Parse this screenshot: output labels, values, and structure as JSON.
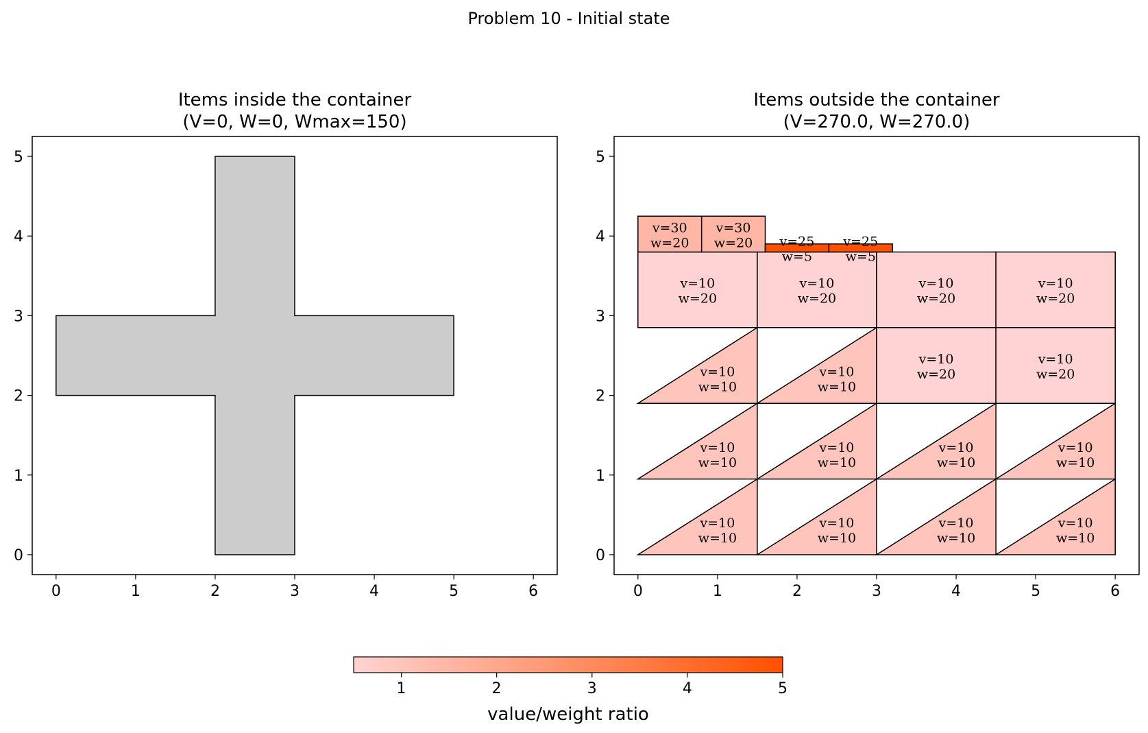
{
  "suptitle": "Problem 10 - Initial state",
  "chart_data": [
    {
      "type": "polygon",
      "title_line1": "Items inside the container",
      "title_line2": "(V=0, W=0, Wmax=150)",
      "xlim": [
        -0.3,
        6.3
      ],
      "ylim": [
        -0.25,
        5.25
      ],
      "xticks": [
        0,
        1,
        2,
        3,
        4,
        5,
        6
      ],
      "yticks": [
        0,
        1,
        2,
        3,
        4,
        5
      ],
      "container": {
        "color": "#cccccc",
        "points": [
          [
            2,
            0
          ],
          [
            3,
            0
          ],
          [
            3,
            2
          ],
          [
            5,
            2
          ],
          [
            5,
            3
          ],
          [
            3,
            3
          ],
          [
            3,
            5
          ],
          [
            2,
            5
          ],
          [
            2,
            3
          ],
          [
            0,
            3
          ],
          [
            0,
            2
          ],
          [
            2,
            2
          ]
        ]
      }
    },
    {
      "type": "polygon",
      "title_line1": "Items outside the container",
      "title_line2": "(V=270.0, W=270.0)",
      "xlim": [
        -0.3,
        6.3
      ],
      "ylim": [
        -0.25,
        5.25
      ],
      "xticks": [
        0,
        1,
        2,
        3,
        4,
        5,
        6
      ],
      "yticks": [
        0,
        1,
        2,
        3,
        4,
        5
      ],
      "items": [
        {
          "shape": "tri",
          "v": "v=10",
          "w": "w=10",
          "ratio": 1,
          "points": [
            [
              0,
              0
            ],
            [
              1.5,
              0
            ],
            [
              1.5,
              0.95
            ]
          ]
        },
        {
          "shape": "tri",
          "v": "v=10",
          "w": "w=10",
          "ratio": 1,
          "points": [
            [
              1.5,
              0
            ],
            [
              3,
              0
            ],
            [
              3,
              0.95
            ]
          ]
        },
        {
          "shape": "tri",
          "v": "v=10",
          "w": "w=10",
          "ratio": 1,
          "points": [
            [
              3,
              0
            ],
            [
              4.5,
              0
            ],
            [
              4.5,
              0.95
            ]
          ]
        },
        {
          "shape": "tri",
          "v": "v=10",
          "w": "w=10",
          "ratio": 1,
          "points": [
            [
              4.5,
              0
            ],
            [
              6,
              0
            ],
            [
              6,
              0.95
            ]
          ]
        },
        {
          "shape": "tri",
          "v": "v=10",
          "w": "w=10",
          "ratio": 1,
          "points": [
            [
              0,
              0.95
            ],
            [
              1.5,
              0.95
            ],
            [
              1.5,
              1.9
            ]
          ]
        },
        {
          "shape": "tri",
          "v": "v=10",
          "w": "w=10",
          "ratio": 1,
          "points": [
            [
              1.5,
              0.95
            ],
            [
              3,
              0.95
            ],
            [
              3,
              1.9
            ]
          ]
        },
        {
          "shape": "tri",
          "v": "v=10",
          "w": "w=10",
          "ratio": 1,
          "points": [
            [
              3,
              0.95
            ],
            [
              4.5,
              0.95
            ],
            [
              4.5,
              1.9
            ]
          ]
        },
        {
          "shape": "tri",
          "v": "v=10",
          "w": "w=10",
          "ratio": 1,
          "points": [
            [
              4.5,
              0.95
            ],
            [
              6,
              0.95
            ],
            [
              6,
              1.9
            ]
          ]
        },
        {
          "shape": "tri",
          "v": "v=10",
          "w": "w=10",
          "ratio": 1,
          "points": [
            [
              0,
              1.9
            ],
            [
              1.5,
              1.9
            ],
            [
              1.5,
              2.85
            ]
          ]
        },
        {
          "shape": "tri",
          "v": "v=10",
          "w": "w=10",
          "ratio": 1,
          "points": [
            [
              1.5,
              1.9
            ],
            [
              3,
              1.9
            ],
            [
              3,
              2.85
            ]
          ]
        },
        {
          "shape": "rect",
          "v": "v=10",
          "w": "w=20",
          "ratio": 0.5,
          "points": [
            [
              3,
              1.9
            ],
            [
              4.5,
              1.9
            ],
            [
              4.5,
              2.85
            ],
            [
              3,
              2.85
            ]
          ]
        },
        {
          "shape": "rect",
          "v": "v=10",
          "w": "w=20",
          "ratio": 0.5,
          "points": [
            [
              4.5,
              1.9
            ],
            [
              6,
              1.9
            ],
            [
              6,
              2.85
            ],
            [
              4.5,
              2.85
            ]
          ]
        },
        {
          "shape": "rect",
          "v": "v=10",
          "w": "w=20",
          "ratio": 0.5,
          "points": [
            [
              0,
              2.85
            ],
            [
              1.5,
              2.85
            ],
            [
              1.5,
              3.8
            ],
            [
              0,
              3.8
            ]
          ]
        },
        {
          "shape": "rect",
          "v": "v=10",
          "w": "w=20",
          "ratio": 0.5,
          "points": [
            [
              1.5,
              2.85
            ],
            [
              3,
              2.85
            ],
            [
              3,
              3.8
            ],
            [
              1.5,
              3.8
            ]
          ]
        },
        {
          "shape": "rect",
          "v": "v=10",
          "w": "w=20",
          "ratio": 0.5,
          "points": [
            [
              3,
              2.85
            ],
            [
              4.5,
              2.85
            ],
            [
              4.5,
              3.8
            ],
            [
              3,
              3.8
            ]
          ]
        },
        {
          "shape": "rect",
          "v": "v=10",
          "w": "w=20",
          "ratio": 0.5,
          "points": [
            [
              4.5,
              2.85
            ],
            [
              6,
              2.85
            ],
            [
              6,
              3.8
            ],
            [
              4.5,
              3.8
            ]
          ]
        },
        {
          "shape": "rect",
          "v": "v=30",
          "w": "w=20",
          "ratio": 1.5,
          "points": [
            [
              0,
              3.8
            ],
            [
              0.8,
              3.8
            ],
            [
              0.8,
              4.25
            ],
            [
              0,
              4.25
            ]
          ]
        },
        {
          "shape": "rect",
          "v": "v=30",
          "w": "w=20",
          "ratio": 1.5,
          "points": [
            [
              0.8,
              3.8
            ],
            [
              1.6,
              3.8
            ],
            [
              1.6,
              4.25
            ],
            [
              0.8,
              4.25
            ]
          ]
        },
        {
          "shape": "rect",
          "v": "v=25",
          "w": "w=5",
          "ratio": 5,
          "points": [
            [
              1.6,
              3.8
            ],
            [
              2.4,
              3.8
            ],
            [
              2.4,
              3.9
            ],
            [
              1.6,
              3.9
            ]
          ]
        },
        {
          "shape": "rect",
          "v": "v=25",
          "w": "w=5",
          "ratio": 5,
          "points": [
            [
              2.4,
              3.8
            ],
            [
              3.2,
              3.8
            ],
            [
              3.2,
              3.9
            ],
            [
              2.4,
              3.9
            ]
          ]
        }
      ]
    }
  ],
  "colorbar": {
    "label": "value/weight ratio",
    "vmin": 0.5,
    "vmax": 5,
    "ticks": [
      1,
      2,
      3,
      4,
      5
    ],
    "color_low": "#ffd3d3",
    "color_high": "#ff5000"
  }
}
